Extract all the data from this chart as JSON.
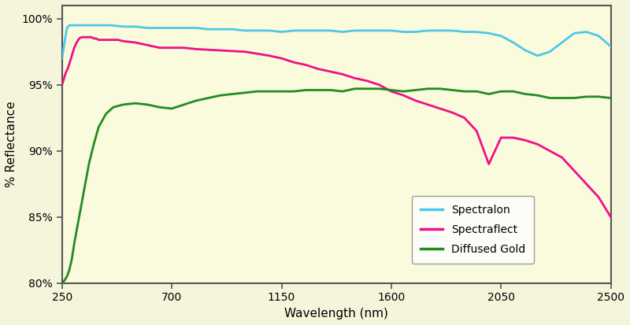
{
  "background_color": "#FAFADC",
  "fig_facecolor": "#F5F5DC",
  "xlim": [
    250,
    2500
  ],
  "ylim": [
    80,
    101
  ],
  "yticks": [
    80,
    85,
    90,
    95,
    100
  ],
  "ytick_labels": [
    "80%",
    "85%",
    "90%",
    "95%",
    "100%"
  ],
  "xticks": [
    250,
    700,
    1150,
    1600,
    2050,
    2500
  ],
  "xtick_labels": [
    "250",
    "700",
    "1150",
    "1600",
    "2050",
    "2500"
  ],
  "xlabel": "Wavelength (nm)",
  "ylabel": "% Reflectance",
  "spectralon_color": "#4DC8E8",
  "spectraflect_color": "#EE1188",
  "diffused_gold_color": "#228B22",
  "legend_labels": [
    "Spectralon",
    "Spectraflect",
    "Diffused Gold"
  ],
  "spectralon_x": [
    250,
    260,
    270,
    280,
    290,
    300,
    320,
    350,
    400,
    450,
    500,
    550,
    600,
    650,
    700,
    750,
    800,
    850,
    900,
    950,
    1000,
    1050,
    1100,
    1150,
    1200,
    1250,
    1300,
    1350,
    1400,
    1450,
    1500,
    1550,
    1600,
    1650,
    1700,
    1750,
    1800,
    1850,
    1900,
    1950,
    2000,
    2050,
    2100,
    2150,
    2200,
    2250,
    2300,
    2350,
    2400,
    2450,
    2500
  ],
  "spectralon_y": [
    97.0,
    98.2,
    99.3,
    99.5,
    99.5,
    99.5,
    99.5,
    99.5,
    99.5,
    99.5,
    99.4,
    99.4,
    99.3,
    99.3,
    99.3,
    99.3,
    99.3,
    99.2,
    99.2,
    99.2,
    99.1,
    99.1,
    99.1,
    99.0,
    99.1,
    99.1,
    99.1,
    99.1,
    99.0,
    99.1,
    99.1,
    99.1,
    99.1,
    99.0,
    99.0,
    99.1,
    99.1,
    99.1,
    99.0,
    99.0,
    98.9,
    98.7,
    98.2,
    97.6,
    97.2,
    97.5,
    98.2,
    98.9,
    99.0,
    98.7,
    97.9
  ],
  "spectraflect_x": [
    250,
    255,
    260,
    265,
    270,
    275,
    280,
    285,
    290,
    295,
    300,
    310,
    320,
    330,
    340,
    350,
    360,
    370,
    380,
    390,
    400,
    420,
    440,
    460,
    480,
    500,
    550,
    600,
    650,
    700,
    750,
    800,
    900,
    1000,
    1100,
    1150,
    1200,
    1250,
    1300,
    1350,
    1400,
    1450,
    1500,
    1550,
    1600,
    1650,
    1700,
    1750,
    1800,
    1850,
    1900,
    1950,
    2000,
    2050,
    2100,
    2150,
    2200,
    2250,
    2300,
    2350,
    2400,
    2450,
    2500
  ],
  "spectraflect_y": [
    95.0,
    95.3,
    95.6,
    95.9,
    96.1,
    96.3,
    96.6,
    96.9,
    97.2,
    97.5,
    97.8,
    98.2,
    98.5,
    98.6,
    98.6,
    98.6,
    98.6,
    98.6,
    98.5,
    98.5,
    98.4,
    98.4,
    98.4,
    98.4,
    98.4,
    98.3,
    98.2,
    98.0,
    97.8,
    97.8,
    97.8,
    97.7,
    97.6,
    97.5,
    97.2,
    97.0,
    96.7,
    96.5,
    96.2,
    96.0,
    95.8,
    95.5,
    95.3,
    95.0,
    94.5,
    94.2,
    93.8,
    93.5,
    93.2,
    92.9,
    92.5,
    91.5,
    89.0,
    91.0,
    91.0,
    90.8,
    90.5,
    90.0,
    89.5,
    88.5,
    87.5,
    86.5,
    85.0
  ],
  "diffused_gold_x": [
    250,
    260,
    270,
    280,
    290,
    300,
    320,
    340,
    360,
    380,
    400,
    430,
    460,
    500,
    550,
    600,
    650,
    700,
    750,
    800,
    850,
    900,
    950,
    1000,
    1050,
    1100,
    1150,
    1200,
    1250,
    1300,
    1350,
    1400,
    1450,
    1500,
    1550,
    1600,
    1650,
    1700,
    1750,
    1800,
    1850,
    1900,
    1950,
    2000,
    2050,
    2100,
    2150,
    2200,
    2250,
    2300,
    2350,
    2400,
    2450,
    2500
  ],
  "diffused_gold_y": [
    80.0,
    80.2,
    80.5,
    81.0,
    81.8,
    83.0,
    85.0,
    87.0,
    89.0,
    90.5,
    91.8,
    92.8,
    93.3,
    93.5,
    93.6,
    93.5,
    93.3,
    93.2,
    93.5,
    93.8,
    94.0,
    94.2,
    94.3,
    94.4,
    94.5,
    94.5,
    94.5,
    94.5,
    94.6,
    94.6,
    94.6,
    94.5,
    94.7,
    94.7,
    94.7,
    94.6,
    94.5,
    94.6,
    94.7,
    94.7,
    94.6,
    94.5,
    94.5,
    94.3,
    94.5,
    94.5,
    94.3,
    94.2,
    94.0,
    94.0,
    94.0,
    94.1,
    94.1,
    94.0
  ]
}
